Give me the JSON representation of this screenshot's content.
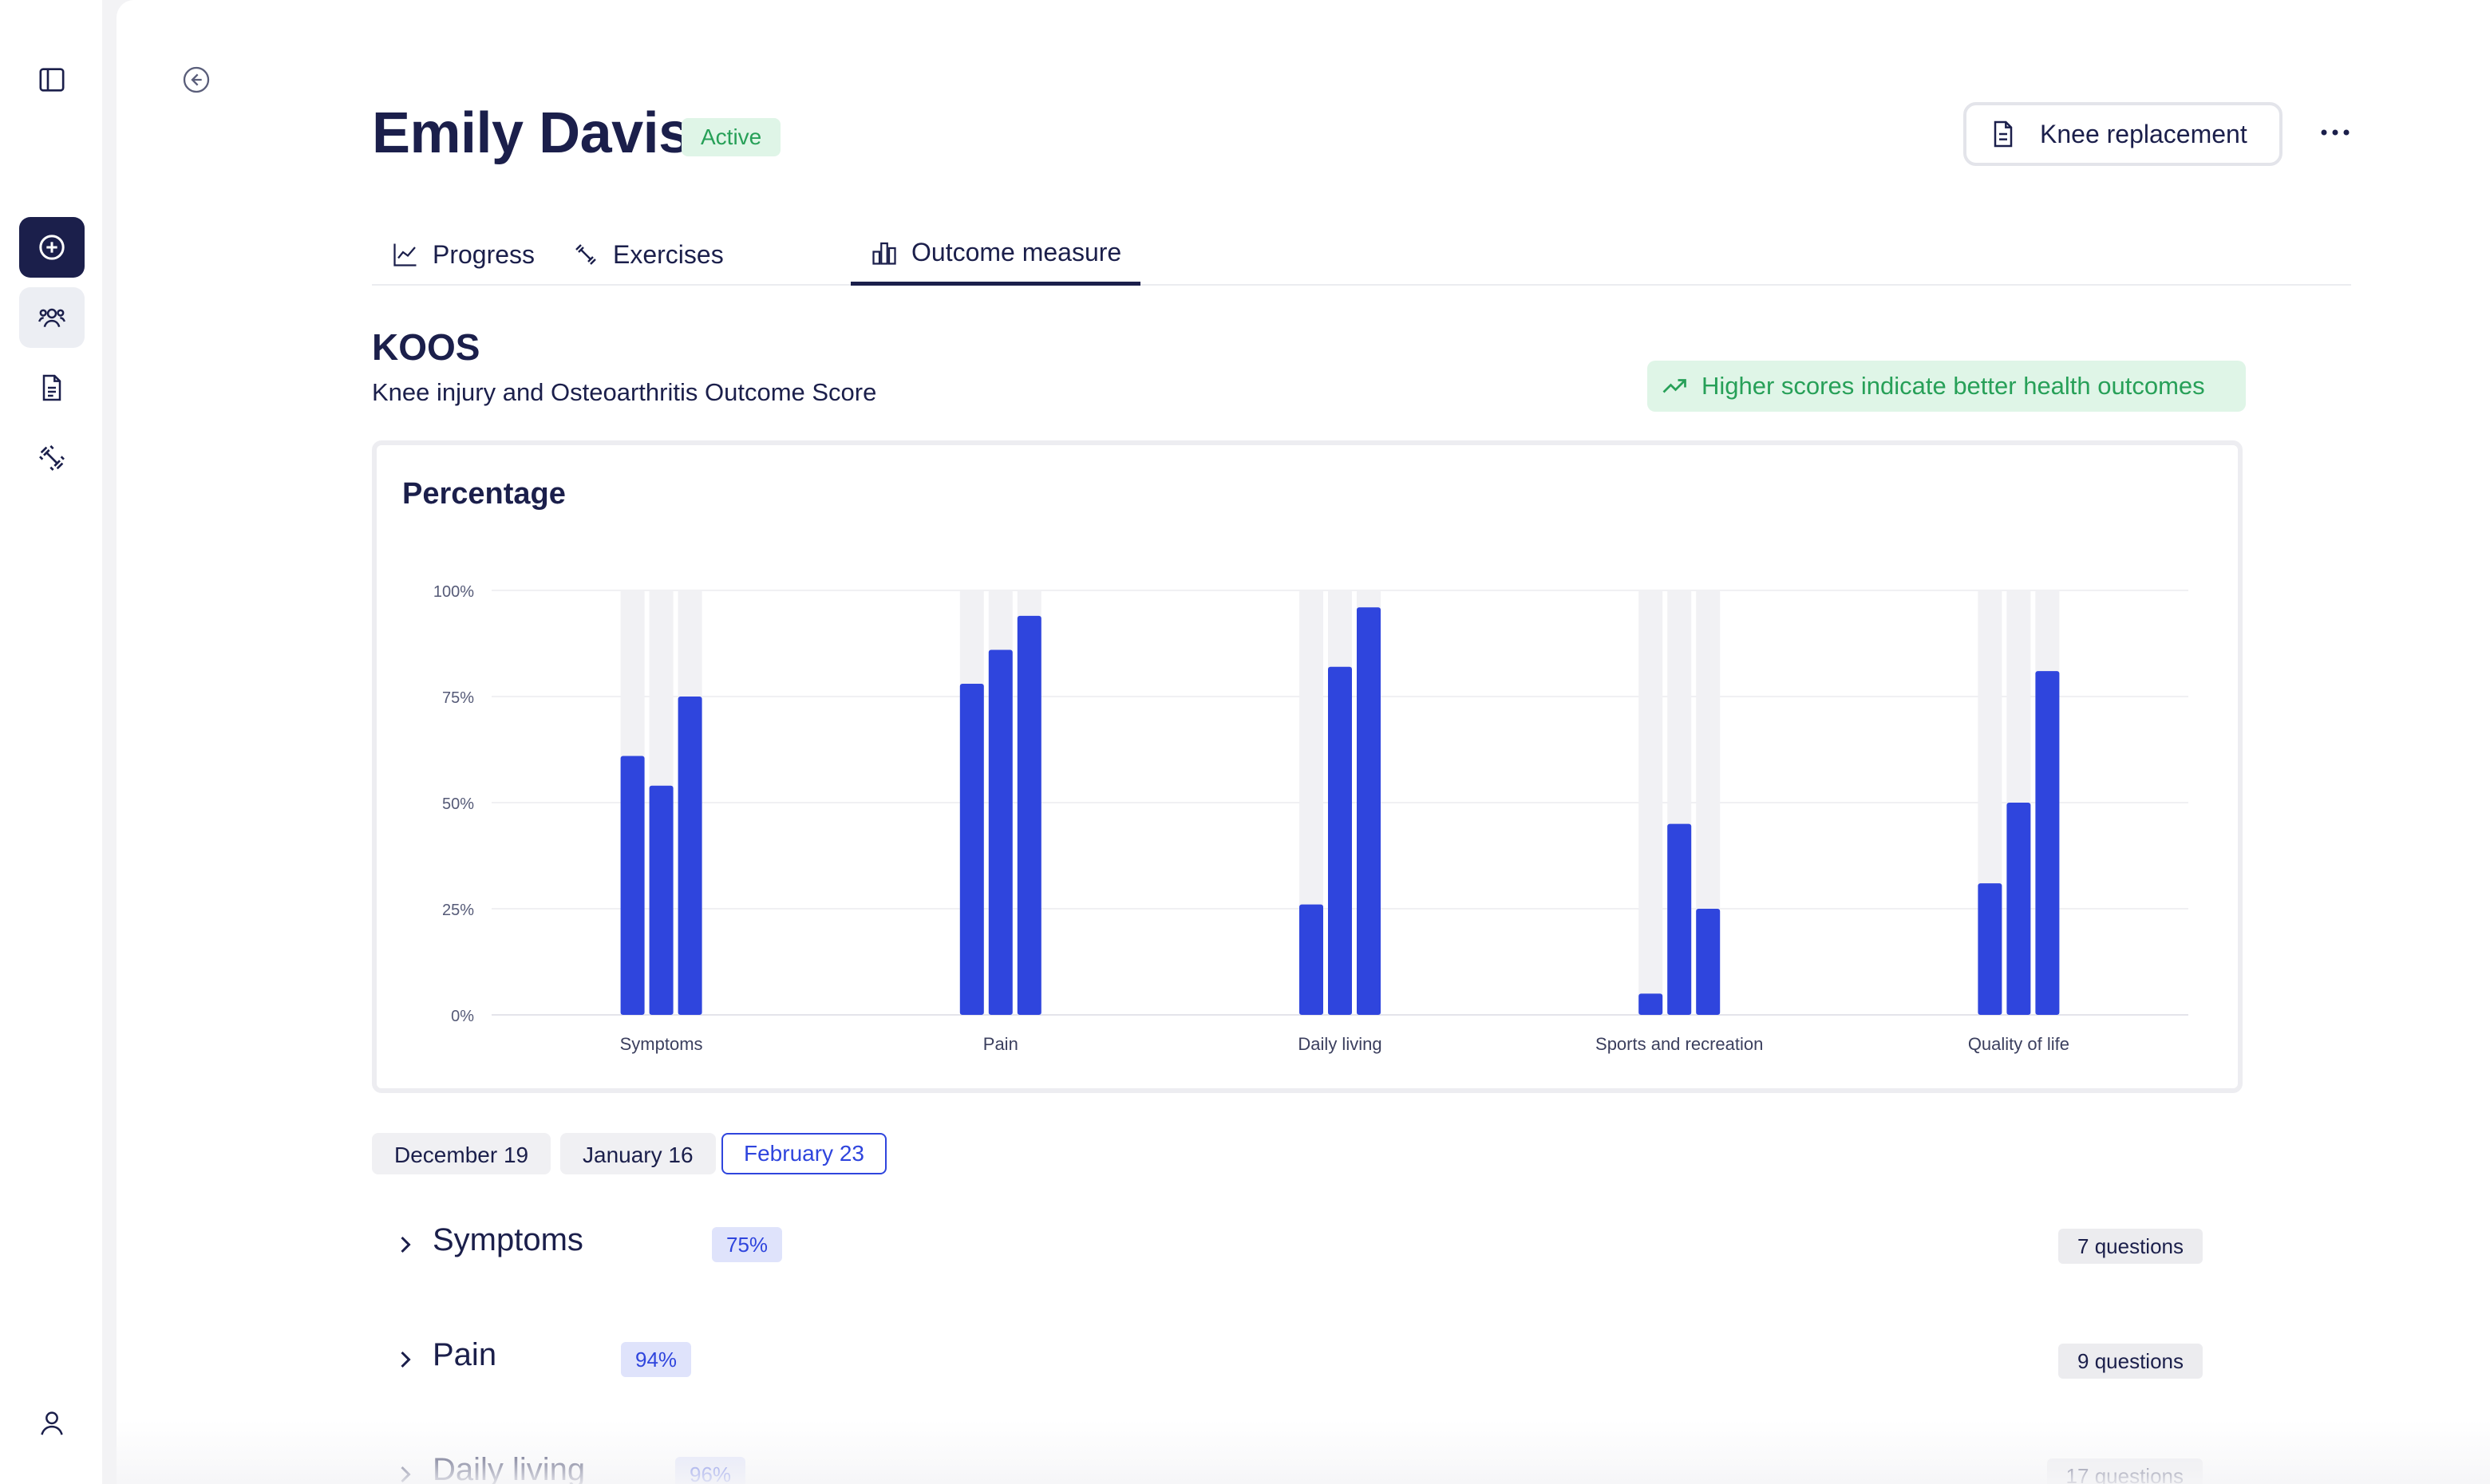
{
  "sidebar": {
    "items": [
      {
        "icon": "sidebar-toggle-icon"
      },
      {
        "icon": "plus-circle-icon"
      },
      {
        "icon": "patients-icon"
      },
      {
        "icon": "document-icon"
      },
      {
        "icon": "exercises-icon"
      },
      {
        "icon": "user-icon"
      }
    ]
  },
  "header": {
    "name": "Emily Davis",
    "status": "Active",
    "condition": "Knee replacement"
  },
  "tabs": [
    {
      "label": "Progress",
      "icon": "chart-line-icon"
    },
    {
      "label": "Exercises",
      "icon": "exercises-icon"
    },
    {
      "label": "Outcome measure",
      "icon": "bar-chart-icon",
      "active": true
    }
  ],
  "section": {
    "title": "KOOS",
    "subtitle": "Knee injury and Osteoarthritis Outcome Score",
    "info": "Higher scores indicate better health outcomes"
  },
  "chart": {
    "title": "Percentage"
  },
  "chart_data": {
    "type": "bar",
    "title": "Percentage",
    "categories": [
      "Symptoms",
      "Pain",
      "Daily living",
      "Sports and recreation",
      "Quality of life"
    ],
    "series": [
      {
        "name": "December 19",
        "values": [
          61,
          78,
          26,
          5,
          31
        ]
      },
      {
        "name": "January 16",
        "values": [
          54,
          86,
          82,
          45,
          50
        ]
      },
      {
        "name": "February 23",
        "values": [
          75,
          94,
          96,
          25,
          81
        ]
      }
    ],
    "yticks": [
      "0%",
      "25%",
      "50%",
      "75%",
      "100%"
    ],
    "ylim": [
      0,
      100
    ],
    "grid": true,
    "color": "#2f45dd",
    "track_color": "#f1f1f4"
  },
  "dates": [
    "December 19",
    "January 16",
    "February 23"
  ],
  "active_date": "February 23",
  "subscales": [
    {
      "title": "Symptoms",
      "score": "75%",
      "questions": "7 questions"
    },
    {
      "title": "Pain",
      "score": "94%",
      "questions": "9 questions"
    },
    {
      "title": "Daily living",
      "score": "96%",
      "questions": "17 questions"
    }
  ]
}
